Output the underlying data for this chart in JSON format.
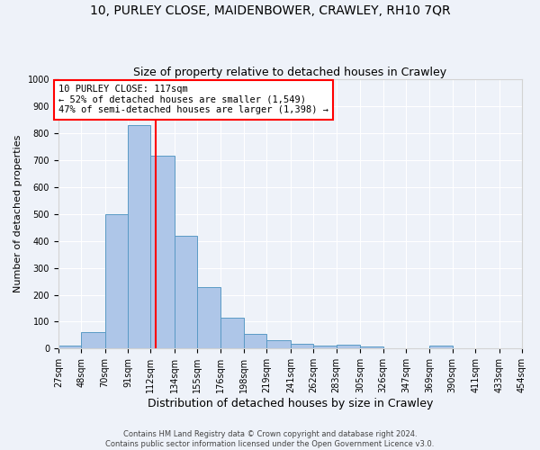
{
  "title1": "10, PURLEY CLOSE, MAIDENBOWER, CRAWLEY, RH10 7QR",
  "title2": "Size of property relative to detached houses in Crawley",
  "xlabel": "Distribution of detached houses by size in Crawley",
  "ylabel": "Number of detached properties",
  "footer1": "Contains HM Land Registry data © Crown copyright and database right 2024.",
  "footer2": "Contains public sector information licensed under the Open Government Licence v3.0.",
  "bin_edges": [
    27,
    48,
    70,
    91,
    112,
    134,
    155,
    176,
    198,
    219,
    241,
    262,
    283,
    305,
    326,
    347,
    369,
    390,
    411,
    433,
    454
  ],
  "bar_heights": [
    10,
    60,
    500,
    830,
    715,
    420,
    230,
    115,
    55,
    32,
    17,
    12,
    15,
    8,
    0,
    0,
    10,
    0,
    0,
    0
  ],
  "bar_color": "#aec6e8",
  "bar_edge_color": "#5a9ac5",
  "vline_x": 117,
  "vline_color": "red",
  "annotation_text": "10 PURLEY CLOSE: 117sqm\n← 52% of detached houses are smaller (1,549)\n47% of semi-detached houses are larger (1,398) →",
  "annotation_box_color": "white",
  "annotation_box_edge_color": "red",
  "ylim": [
    0,
    1000
  ],
  "yticks": [
    0,
    100,
    200,
    300,
    400,
    500,
    600,
    700,
    800,
    900,
    1000
  ],
  "background_color": "#eef2f9",
  "grid_color": "white",
  "title1_fontsize": 10,
  "title2_fontsize": 9,
  "xlabel_fontsize": 9,
  "ylabel_fontsize": 8,
  "annotation_fontsize": 7.5,
  "tick_fontsize": 7,
  "footer_fontsize": 6
}
